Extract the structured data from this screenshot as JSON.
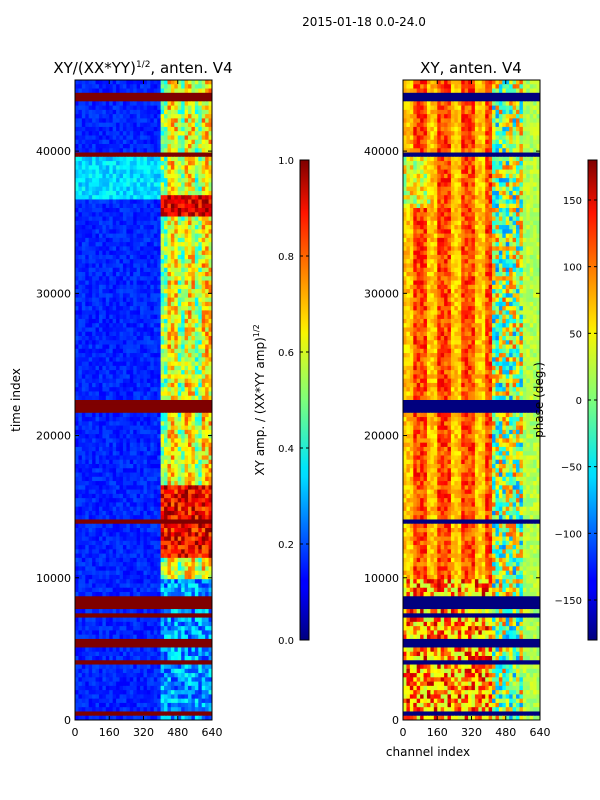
{
  "figure_title": "2015-01-18 0.0-24.0",
  "chart_data": [
    {
      "type": "heatmap",
      "title_prefix": "XY/(XX*YY)",
      "title_sup": "1/2",
      "title_suffix": ", anten. V4",
      "xlabel": "",
      "ylabel": "time index",
      "xlim": [
        0,
        640
      ],
      "ylim": [
        0,
        45000
      ],
      "xticks": [
        0,
        160,
        320,
        480,
        640
      ],
      "yticks": [
        0,
        10000,
        20000,
        30000,
        40000
      ],
      "colorbar": {
        "label_prefix": "XY amp. / (XX*YY amp)",
        "label_sup": "1/2",
        "range": [
          0.0,
          1.0
        ],
        "ticks": [
          0.0,
          0.2,
          0.4,
          0.6,
          0.8,
          1.0
        ],
        "tick_labels": [
          "0.0",
          "0.2",
          "0.4",
          "0.6",
          "0.8",
          "1.0"
        ]
      }
    },
    {
      "type": "heatmap",
      "title": "XY, anten. V4",
      "xlabel": "channel index",
      "ylabel": "",
      "xlim": [
        0,
        640
      ],
      "ylim": [
        0,
        45000
      ],
      "xticks": [
        0,
        160,
        320,
        480,
        640
      ],
      "yticks": [
        0,
        10000,
        20000,
        30000,
        40000
      ],
      "colorbar": {
        "label": "phase (deg.)",
        "range": [
          -180,
          180
        ],
        "ticks": [
          -150,
          -100,
          -50,
          0,
          50,
          100,
          150
        ],
        "tick_labels": [
          "−150",
          "−100",
          "−50",
          "0",
          "50",
          "100",
          "150"
        ]
      }
    }
  ]
}
